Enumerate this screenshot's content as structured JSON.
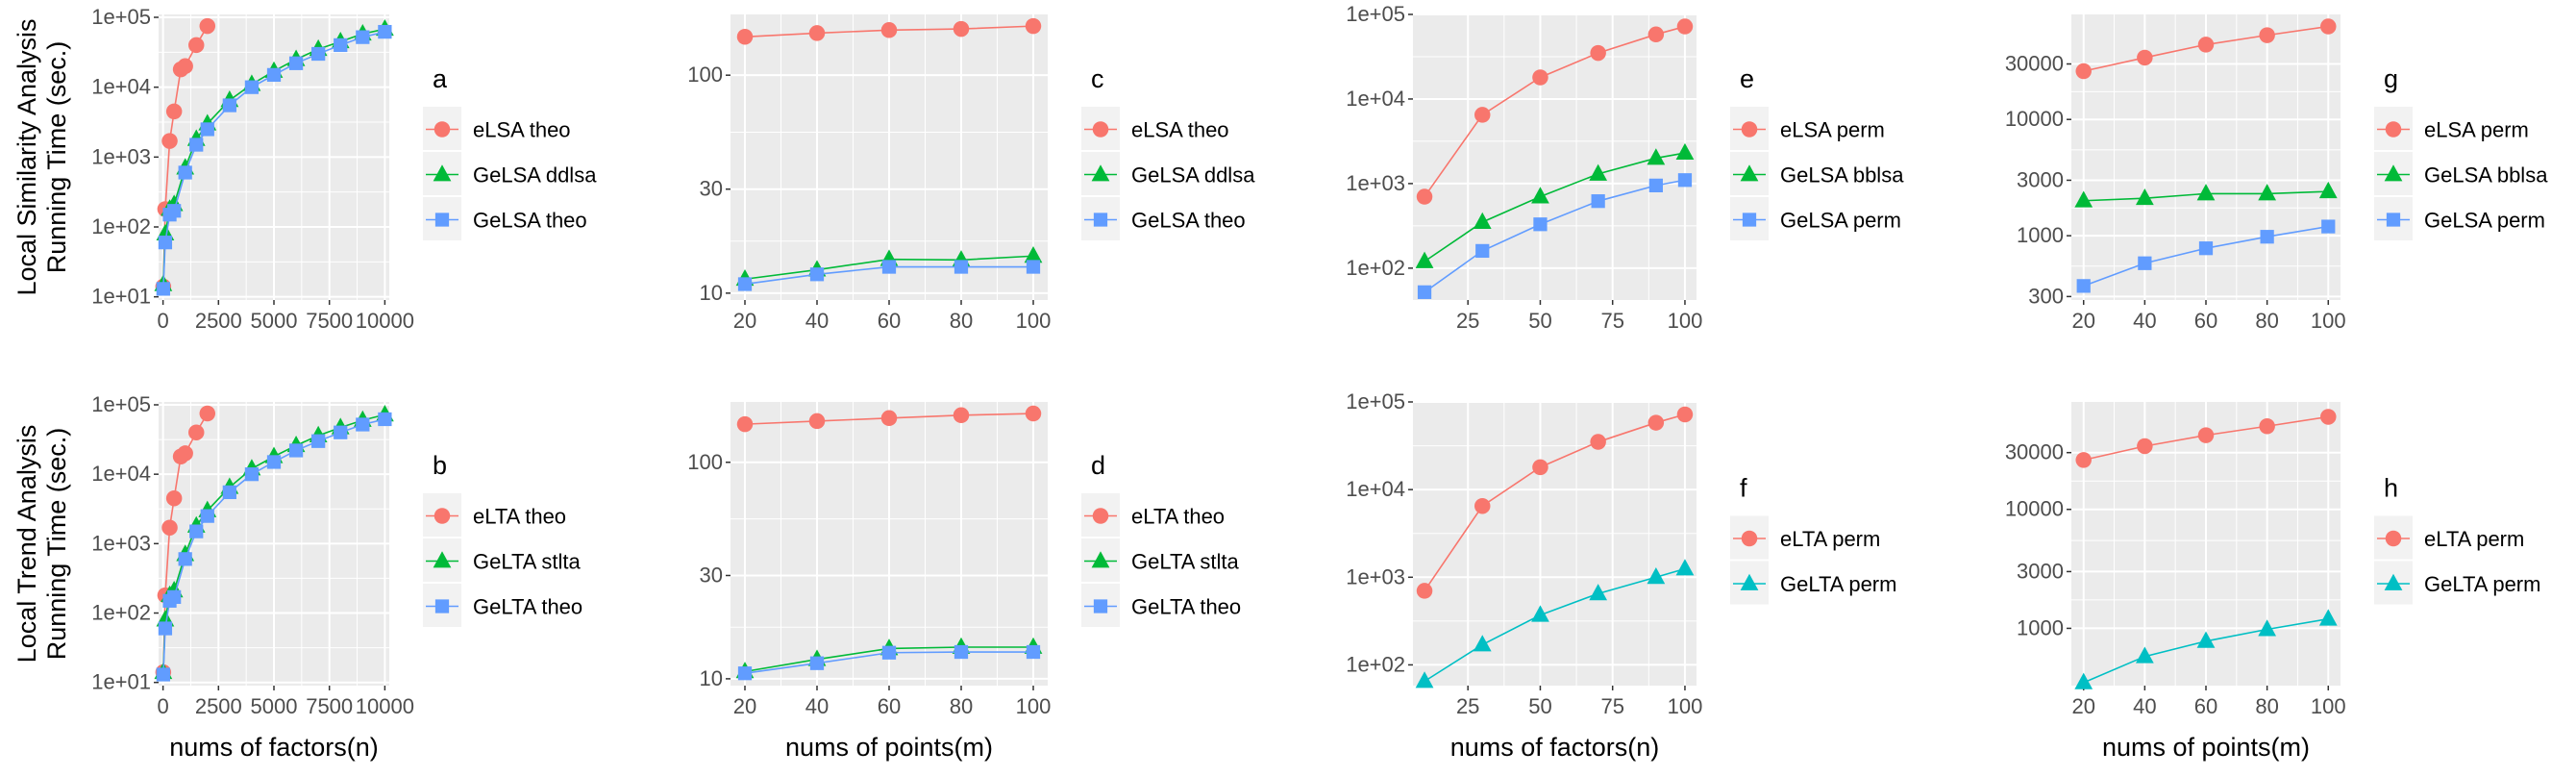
{
  "figure": {
    "row_labels": [
      "Local Similarity Analysis\nRunning Time (sec.)",
      "Local Trend Analysis\nRunning Time (sec.)"
    ],
    "x_labels": [
      "nums of factors(n)",
      "nums of points(m)",
      "nums of factors(n)",
      "nums of points(m)"
    ]
  },
  "chart_data": [
    {
      "id": "a",
      "type": "line",
      "panel_label": "a",
      "yscale": "log",
      "x_ticks": [
        0,
        2500,
        5000,
        7500,
        10000
      ],
      "x_tick_labels": [
        "0",
        "2500",
        "5000",
        "7500",
        "10000"
      ],
      "xlim": [
        -200,
        10200
      ],
      "y_ticks": [
        10,
        100,
        1000,
        10000,
        100000
      ],
      "y_tick_labels": [
        "1e+01",
        "1e+02",
        "1e+03",
        "1e+04",
        "1e+05"
      ],
      "ylim": [
        9,
        110000
      ],
      "series": [
        {
          "name": "eLSA theo",
          "color": "#F8766D",
          "marker": "circle",
          "x": [
            10,
            100,
            300,
            500,
            800,
            1000,
            1500,
            2000
          ],
          "y": [
            14,
            180,
            1700,
            4500,
            18000,
            20000,
            40000,
            75000
          ]
        },
        {
          "name": "GeLSA ddlsa",
          "color": "#00BA38",
          "marker": "triangle",
          "x": [
            10,
            100,
            300,
            500,
            1000,
            1500,
            2000,
            3000,
            4000,
            5000,
            6000,
            7000,
            8000,
            9000,
            10000
          ],
          "y": [
            15,
            80,
            180,
            210,
            700,
            1800,
            3000,
            6500,
            11000,
            17000,
            25000,
            35000,
            45000,
            58000,
            68000
          ]
        },
        {
          "name": "GeLSA theo",
          "color": "#619CFF",
          "marker": "square",
          "x": [
            10,
            100,
            300,
            500,
            1000,
            1500,
            2000,
            3000,
            4000,
            5000,
            6000,
            7000,
            8000,
            9000,
            10000
          ],
          "y": [
            13,
            60,
            150,
            170,
            600,
            1500,
            2500,
            5500,
            10000,
            15000,
            22000,
            30000,
            40000,
            52000,
            62000
          ]
        }
      ]
    },
    {
      "id": "c",
      "type": "line",
      "panel_label": "c",
      "yscale": "log",
      "x_ticks": [
        20,
        40,
        60,
        80,
        100
      ],
      "x_tick_labels": [
        "20",
        "40",
        "60",
        "80",
        "100"
      ],
      "xlim": [
        16,
        104
      ],
      "y_ticks": [
        10,
        30,
        100
      ],
      "y_tick_labels": [
        "10",
        "30",
        "100"
      ],
      "ylim": [
        9.3,
        190
      ],
      "series": [
        {
          "name": "eLSA theo",
          "color": "#F8766D",
          "marker": "circle",
          "x": [
            20,
            40,
            60,
            80,
            100
          ],
          "y": [
            150,
            156,
            161,
            163,
            168
          ]
        },
        {
          "name": "GeLSA ddlsa",
          "color": "#00BA38",
          "marker": "triangle",
          "x": [
            20,
            40,
            60,
            80,
            100
          ],
          "y": [
            11.6,
            12.8,
            14.3,
            14.2,
            14.8
          ]
        },
        {
          "name": "GeLSA theo",
          "color": "#619CFF",
          "marker": "square",
          "x": [
            20,
            40,
            60,
            80,
            100
          ],
          "y": [
            11.0,
            12.2,
            13.2,
            13.2,
            13.2
          ]
        }
      ]
    },
    {
      "id": "e",
      "type": "line",
      "panel_label": "e",
      "yscale": "log",
      "x_ticks": [
        25,
        50,
        75,
        100
      ],
      "x_tick_labels": [
        "25",
        "50",
        "75",
        "100"
      ],
      "xlim": [
        6,
        104
      ],
      "y_ticks": [
        100,
        1000,
        10000,
        100000
      ],
      "y_tick_labels": [
        "1e+02",
        "1e+03",
        "1e+04",
        "1e+05"
      ],
      "ylim": [
        42,
        100000
      ],
      "series": [
        {
          "name": "eLSA perm",
          "color": "#F8766D",
          "marker": "circle",
          "x": [
            10,
            30,
            50,
            70,
            90,
            100
          ],
          "y": [
            700,
            6500,
            18000,
            35000,
            58000,
            72000
          ]
        },
        {
          "name": "GeLSA bblsa",
          "color": "#00BA38",
          "marker": "triangle",
          "x": [
            10,
            30,
            50,
            70,
            90,
            100
          ],
          "y": [
            120,
            350,
            700,
            1300,
            2000,
            2300
          ]
        },
        {
          "name": "GeLSA perm",
          "color": "#619CFF",
          "marker": "square",
          "x": [
            10,
            30,
            50,
            70,
            90,
            100
          ],
          "y": [
            52,
            160,
            330,
            620,
            950,
            1100
          ]
        }
      ]
    },
    {
      "id": "g",
      "type": "line",
      "panel_label": "g",
      "yscale": "log",
      "x_ticks": [
        20,
        40,
        60,
        80,
        100
      ],
      "x_tick_labels": [
        "20",
        "40",
        "60",
        "80",
        "100"
      ],
      "xlim": [
        16,
        104
      ],
      "y_ticks": [
        300,
        1000,
        3000,
        10000,
        30000
      ],
      "y_tick_labels": [
        "300",
        "1000",
        "3000",
        "10000",
        "30000"
      ],
      "ylim": [
        280,
        80000
      ],
      "series": [
        {
          "name": "eLSA perm",
          "color": "#F8766D",
          "marker": "circle",
          "x": [
            20,
            40,
            60,
            80,
            100
          ],
          "y": [
            26000,
            34000,
            44000,
            53000,
            63000
          ]
        },
        {
          "name": "GeLSA bblsa",
          "color": "#00BA38",
          "marker": "triangle",
          "x": [
            20,
            40,
            60,
            80,
            100
          ],
          "y": [
            2000,
            2100,
            2300,
            2300,
            2400
          ]
        },
        {
          "name": "GeLSA perm",
          "color": "#619CFF",
          "marker": "square",
          "x": [
            20,
            40,
            60,
            80,
            100
          ],
          "y": [
            370,
            580,
            780,
            980,
            1200
          ]
        }
      ]
    },
    {
      "id": "b",
      "type": "line",
      "panel_label": "b",
      "yscale": "log",
      "x_ticks": [
        0,
        2500,
        5000,
        7500,
        10000
      ],
      "x_tick_labels": [
        "0",
        "2500",
        "5000",
        "7500",
        "10000"
      ],
      "xlim": [
        -200,
        10200
      ],
      "y_ticks": [
        10,
        100,
        1000,
        10000,
        100000
      ],
      "y_tick_labels": [
        "1e+01",
        "1e+02",
        "1e+03",
        "1e+04",
        "1e+05"
      ],
      "ylim": [
        9,
        110000
      ],
      "series": [
        {
          "name": "eLTA theo",
          "color": "#F8766D",
          "marker": "circle",
          "x": [
            10,
            100,
            300,
            500,
            800,
            1000,
            1500,
            2000
          ],
          "y": [
            14,
            180,
            1700,
            4500,
            18000,
            20000,
            40000,
            75000
          ]
        },
        {
          "name": "GeLTA stlta",
          "color": "#00BA38",
          "marker": "triangle",
          "x": [
            10,
            100,
            300,
            500,
            1000,
            1500,
            2000,
            3000,
            4000,
            5000,
            6000,
            7000,
            8000,
            9000,
            10000
          ],
          "y": [
            14,
            80,
            180,
            210,
            700,
            1800,
            3000,
            6500,
            12000,
            18000,
            26000,
            36000,
            47000,
            60000,
            72000
          ]
        },
        {
          "name": "GeLTA theo",
          "color": "#619CFF",
          "marker": "square",
          "x": [
            10,
            100,
            300,
            500,
            1000,
            1500,
            2000,
            3000,
            4000,
            5000,
            6000,
            7000,
            8000,
            9000,
            10000
          ],
          "y": [
            13,
            60,
            150,
            170,
            600,
            1500,
            2500,
            5500,
            10000,
            15000,
            22000,
            30000,
            40000,
            52000,
            62000
          ]
        }
      ]
    },
    {
      "id": "d",
      "type": "line",
      "panel_label": "d",
      "yscale": "log",
      "x_ticks": [
        20,
        40,
        60,
        80,
        100
      ],
      "x_tick_labels": [
        "20",
        "40",
        "60",
        "80",
        "100"
      ],
      "xlim": [
        16,
        104
      ],
      "y_ticks": [
        10,
        30,
        100
      ],
      "y_tick_labels": [
        "10",
        "30",
        "100"
      ],
      "ylim": [
        9.3,
        190
      ],
      "series": [
        {
          "name": "eLTA theo",
          "color": "#F8766D",
          "marker": "circle",
          "x": [
            20,
            40,
            60,
            80,
            100
          ],
          "y": [
            150,
            155,
            160,
            165,
            168
          ]
        },
        {
          "name": "GeLTA stlta",
          "color": "#00BA38",
          "marker": "triangle",
          "x": [
            20,
            40,
            60,
            80,
            100
          ],
          "y": [
            10.8,
            12.3,
            13.8,
            14.0,
            14.0
          ]
        },
        {
          "name": "GeLTA theo",
          "color": "#619CFF",
          "marker": "square",
          "x": [
            20,
            40,
            60,
            80,
            100
          ],
          "y": [
            10.6,
            11.8,
            13.2,
            13.3,
            13.3
          ]
        }
      ]
    },
    {
      "id": "f",
      "type": "line",
      "panel_label": "f",
      "yscale": "log",
      "x_ticks": [
        25,
        50,
        75,
        100
      ],
      "x_tick_labels": [
        "25",
        "50",
        "75",
        "100"
      ],
      "xlim": [
        6,
        104
      ],
      "y_ticks": [
        100,
        1000,
        10000,
        100000
      ],
      "y_tick_labels": [
        "1e+02",
        "1e+03",
        "1e+04",
        "1e+05"
      ],
      "ylim": [
        58,
        100000
      ],
      "series": [
        {
          "name": "eLTA perm",
          "color": "#F8766D",
          "marker": "circle",
          "x": [
            10,
            30,
            50,
            70,
            90,
            100
          ],
          "y": [
            700,
            6500,
            18000,
            35000,
            58000,
            72000
          ]
        },
        {
          "name": "GeLTA perm",
          "color": "#00BFC4",
          "marker": "triangle",
          "x": [
            10,
            30,
            50,
            70,
            90,
            100
          ],
          "y": [
            65,
            170,
            370,
            650,
            1000,
            1250
          ]
        }
      ]
    },
    {
      "id": "h",
      "type": "line",
      "panel_label": "h",
      "yscale": "log",
      "x_ticks": [
        20,
        40,
        60,
        80,
        100
      ],
      "x_tick_labels": [
        "20",
        "40",
        "60",
        "80",
        "100"
      ],
      "xlim": [
        16,
        104
      ],
      "y_ticks": [
        1000,
        3000,
        10000,
        30000
      ],
      "y_tick_labels": [
        "1000",
        "3000",
        "10000",
        "30000"
      ],
      "ylim": [
        330,
        80000
      ],
      "series": [
        {
          "name": "eLTA perm",
          "color": "#F8766D",
          "marker": "circle",
          "x": [
            20,
            40,
            60,
            80,
            100
          ],
          "y": [
            26000,
            34000,
            42000,
            50000,
            60000
          ]
        },
        {
          "name": "GeLTA perm",
          "color": "#00BFC4",
          "marker": "triangle",
          "x": [
            20,
            40,
            60,
            80,
            100
          ],
          "y": [
            350,
            580,
            780,
            980,
            1200
          ]
        }
      ]
    }
  ]
}
